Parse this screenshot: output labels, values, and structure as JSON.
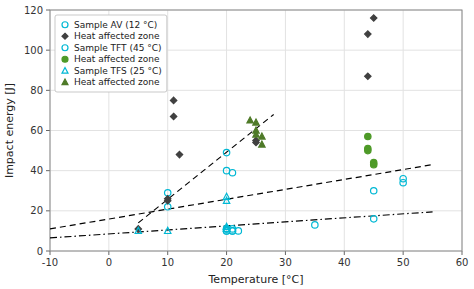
{
  "chart_data": {
    "type": "scatter",
    "xlabel": "Temperature [°C]",
    "ylabel": "Impact energy [J]",
    "xlim": [
      -10,
      60
    ],
    "ylim": [
      0,
      120
    ],
    "xticks": [
      -10,
      0,
      10,
      20,
      30,
      40,
      50,
      60
    ],
    "yticks": [
      0,
      20,
      40,
      60,
      80,
      100,
      120
    ],
    "grid": true,
    "legend": "upper left",
    "series": [
      {
        "name": "Sample AV (12 °C)",
        "type": "scatter",
        "marker": "circle-open",
        "color": "#00b8d4",
        "x": [
          10,
          10,
          20,
          20,
          21,
          20,
          35,
          45,
          45,
          50,
          50
        ],
        "values": [
          29,
          22,
          49,
          40,
          39,
          11,
          13,
          16,
          30,
          36,
          34
        ]
      },
      {
        "name": "Heat affected zone",
        "type": "scatter",
        "marker": "diamond",
        "color": "#404040",
        "x": [
          5,
          10,
          10,
          11,
          11,
          12
        ],
        "values": [
          11,
          26,
          25,
          75,
          67,
          48
        ]
      },
      {
        "type": "scatter",
        "marker": "diamond",
        "color": "#404040",
        "x": [
          25,
          25,
          44,
          44,
          45
        ],
        "values": [
          55,
          54,
          108,
          87,
          116
        ]
      },
      {
        "name": "Sample TFT (45 °C)",
        "type": "scatter",
        "marker": "circle-open",
        "color": "#00b8d4",
        "x": [
          20,
          20,
          20,
          21,
          21,
          21,
          22
        ],
        "values": [
          10,
          11,
          10,
          10,
          11,
          10,
          10
        ]
      },
      {
        "name": "Heat affected zone",
        "type": "scatter",
        "marker": "circle",
        "color": "#4e9a28",
        "x": [
          44,
          44,
          44,
          45,
          45
        ],
        "values": [
          57,
          51,
          50,
          44,
          43
        ]
      },
      {
        "name": "Sample TFS (25 °C)",
        "type": "scatter",
        "marker": "triangle-open",
        "color": "#00b8d4",
        "x": [
          5,
          10,
          20,
          20,
          20,
          20
        ],
        "values": [
          10,
          10,
          27,
          25,
          12,
          11
        ]
      },
      {
        "name": "Heat affected zone",
        "type": "scatter",
        "marker": "triangle",
        "color": "#4e7a28",
        "x": [
          24,
          25,
          25,
          25,
          26,
          26
        ],
        "values": [
          65,
          64,
          60,
          58,
          57,
          53
        ]
      },
      {
        "type": "line",
        "line_style": "dash-dot",
        "color": "black",
        "x": [
          -10,
          55
        ],
        "values": [
          6.5,
          19.5
        ]
      },
      {
        "type": "line",
        "line_style": "dashed",
        "color": "black",
        "x": [
          -10,
          55
        ],
        "values": [
          11,
          43
        ]
      },
      {
        "type": "line",
        "line_style": "dashed",
        "color": "black",
        "x": [
          5,
          28
        ],
        "values": [
          14,
          68
        ]
      }
    ]
  }
}
